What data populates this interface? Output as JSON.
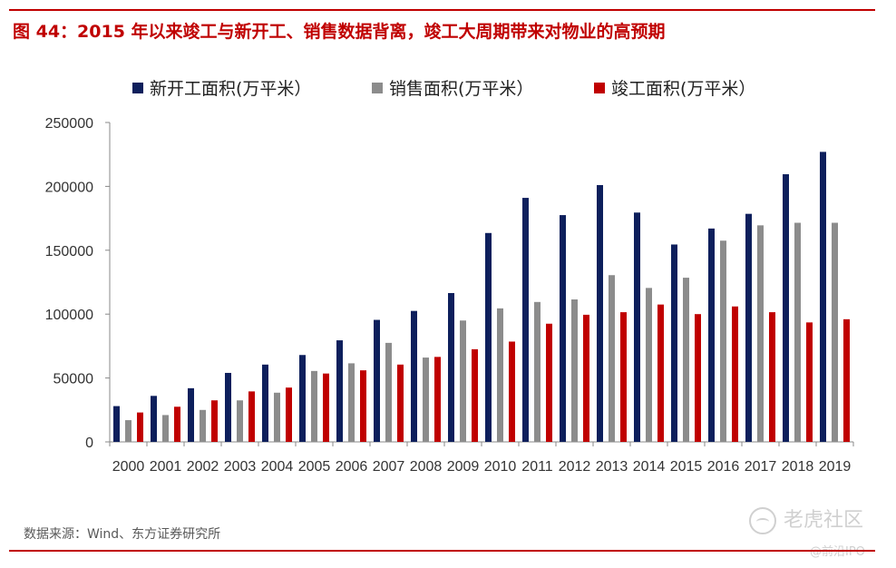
{
  "title": "图 44：2015 年以来竣工与新开工、销售数据背离，竣工大周期带来对物业的高预期",
  "source": "数据来源：Wind、东方证券研究所",
  "watermark": {
    "main": "老虎社区",
    "sub": "@前沿IPO"
  },
  "chart_data": {
    "type": "bar",
    "categories": [
      "2000",
      "2001",
      "2002",
      "2003",
      "2004",
      "2005",
      "2006",
      "2007",
      "2008",
      "2009",
      "2010",
      "2011",
      "2012",
      "2013",
      "2014",
      "2015",
      "2016",
      "2017",
      "2018",
      "2019"
    ],
    "series": [
      {
        "name": "新开工面积(万平米）",
        "color": "#0d1f5c",
        "values": [
          28000,
          36000,
          42000,
          54000,
          60500,
          68000,
          79500,
          95500,
          102500,
          116500,
          163500,
          191000,
          177500,
          201000,
          179500,
          154500,
          167000,
          178500,
          209500,
          227000
        ]
      },
      {
        "name": "销售面积(万平米）",
        "color": "#8c8c8c",
        "values": [
          17000,
          21000,
          25000,
          32500,
          38500,
          55500,
          61500,
          77500,
          66000,
          95000,
          104500,
          109500,
          111500,
          130500,
          120500,
          128500,
          157500,
          169500,
          171500,
          171500
        ]
      },
      {
        "name": "竣工面积(万平米）",
        "color": "#c00000",
        "values": [
          23000,
          27500,
          32500,
          39500,
          42500,
          53500,
          56000,
          60500,
          66500,
          72500,
          78500,
          92500,
          99500,
          101500,
          107500,
          100000,
          106000,
          101500,
          93500,
          96000
        ]
      }
    ],
    "yticks": [
      0,
      50000,
      100000,
      150000,
      200000,
      250000
    ],
    "ylim": [
      0,
      250000
    ],
    "legend_position": "top",
    "grid": false
  }
}
